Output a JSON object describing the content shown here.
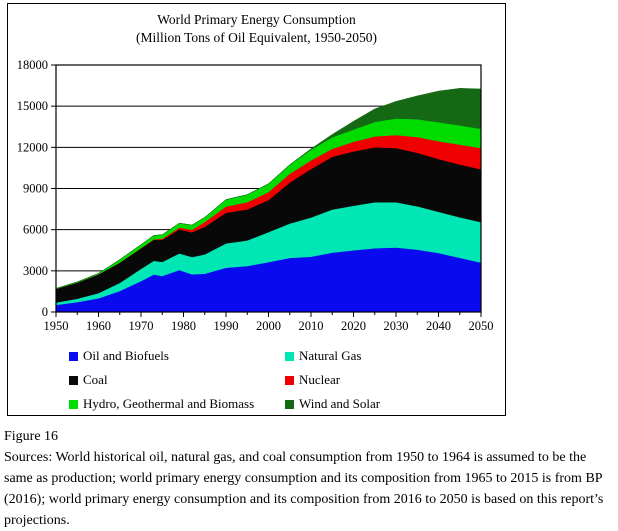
{
  "title": {
    "line1": "World Primary Energy Consumption",
    "line2": "(Million Tons of Oil Equivalent, 1950-2050)"
  },
  "figure_label": "Figure 16",
  "caption": "Sources: World historical oil, natural gas, and coal consumption from 1950 to 1964 is assumed to be the same as production; world primary energy consumption and its composition from 1965 to 2015 is from BP (2016); world primary energy consumption and its composition from 2016 to 2050 is based on this report’s projections.",
  "chart_data": {
    "type": "area",
    "stacked": true,
    "title": "World Primary Energy Consumption (Million Tons of Oil Equivalent, 1950-2050)",
    "xlabel": "",
    "ylabel": "",
    "xlim": [
      1950,
      2050
    ],
    "ylim": [
      0,
      18000
    ],
    "grid": "horizontal-only",
    "legend_position": "below-plot, two columns",
    "x_ticks": [
      1950,
      1960,
      1970,
      1980,
      1990,
      2000,
      2010,
      2020,
      2030,
      2040,
      2050
    ],
    "x_minor_tick_step": 5,
    "y_ticks": [
      0,
      3000,
      6000,
      9000,
      12000,
      15000,
      18000
    ],
    "x": [
      1950,
      1955,
      1960,
      1965,
      1970,
      1973,
      1975,
      1979,
      1982,
      1985,
      1990,
      1995,
      2000,
      2005,
      2010,
      2015,
      2020,
      2025,
      2030,
      2035,
      2040,
      2045,
      2050
    ],
    "series": [
      {
        "name": "Oil and Biofuels",
        "color": "#0a0af0",
        "values": [
          520,
          720,
          1000,
          1530,
          2250,
          2730,
          2620,
          3060,
          2750,
          2790,
          3230,
          3350,
          3640,
          3940,
          4030,
          4330,
          4500,
          4650,
          4700,
          4550,
          4300,
          3950,
          3600
        ]
      },
      {
        "name": "Natural Gas",
        "color": "#00e6b4",
        "values": [
          170,
          250,
          380,
          590,
          890,
          1000,
          1030,
          1210,
          1260,
          1410,
          1770,
          1870,
          2180,
          2510,
          2860,
          3140,
          3250,
          3350,
          3300,
          3150,
          3000,
          2950,
          2950
        ]
      },
      {
        "name": "Coal",
        "color": "#080808",
        "values": [
          1000,
          1180,
          1370,
          1480,
          1500,
          1530,
          1610,
          1750,
          1800,
          2010,
          2240,
          2260,
          2340,
          2990,
          3530,
          3840,
          3950,
          4000,
          3950,
          3900,
          3850,
          3850,
          3850
        ]
      },
      {
        "name": "Nuclear",
        "color": "#f00000",
        "values": [
          0,
          0,
          0,
          10,
          15,
          45,
          85,
          140,
          190,
          350,
          450,
          520,
          580,
          630,
          630,
          580,
          700,
          800,
          950,
          1150,
          1300,
          1450,
          1550
        ]
      },
      {
        "name": "Hydro, Geothermal and Biomass",
        "color": "#00dc00",
        "values": [
          30,
          40,
          60,
          210,
          250,
          270,
          290,
          310,
          330,
          340,
          500,
          550,
          600,
          650,
          780,
          850,
          900,
          1050,
          1200,
          1300,
          1380,
          1400,
          1400
        ]
      },
      {
        "name": "Wind and Solar",
        "color": "#156915",
        "values": [
          0,
          0,
          0,
          0,
          0,
          0,
          0,
          0,
          0,
          0,
          0,
          5,
          10,
          20,
          60,
          200,
          600,
          950,
          1250,
          1700,
          2270,
          2700,
          2900
        ]
      }
    ]
  }
}
